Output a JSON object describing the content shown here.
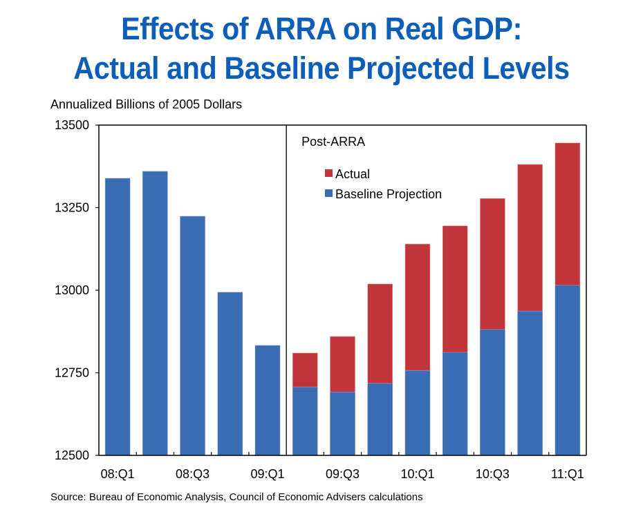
{
  "chart_data": {
    "type": "bar",
    "stacked": true,
    "title": "Effects of ARRA on Real GDP:",
    "subtitle": "Actual and Baseline Projected Levels",
    "ylabel": "Annualized Billions of 2005 Dollars",
    "xlabel": "",
    "ylim": [
      12500,
      13500
    ],
    "yticks": [
      12500,
      12750,
      13000,
      13250,
      13500
    ],
    "categories": [
      "08:Q1",
      "08:Q2",
      "08:Q3",
      "08:Q4",
      "09:Q1",
      "09:Q2",
      "09:Q3",
      "09:Q4",
      "10:Q1",
      "10:Q2",
      "10:Q3",
      "10:Q4",
      "11:Q1"
    ],
    "xtick_labels": [
      "08:Q1",
      "",
      "08:Q3",
      "",
      "09:Q1",
      "",
      "09:Q3",
      "",
      "10:Q1",
      "",
      "10:Q3",
      "",
      "11:Q1"
    ],
    "series": [
      {
        "name": "Baseline Projection",
        "color": "#3a6cb3",
        "values": [
          13339,
          13360,
          13224,
          12994,
          12833,
          12707,
          12692,
          12718,
          12757,
          12812,
          12881,
          12937,
          13015
        ]
      },
      {
        "name": "Actual",
        "color": "#c1343a",
        "values": [
          null,
          null,
          null,
          null,
          null,
          12810,
          12860,
          13019,
          13140,
          13195,
          13278,
          13381,
          13446
        ]
      }
    ],
    "legend": {
      "entries": [
        "Actual",
        "Baseline Projection"
      ],
      "placement": "top-center"
    },
    "annotations": [
      {
        "text": "Post-ARRA",
        "after_category": "09:Q1",
        "divider": true
      }
    ],
    "grid": false,
    "source": "Source: Bureau of Economic Analysis, Council of Economic Advisers calculations"
  }
}
